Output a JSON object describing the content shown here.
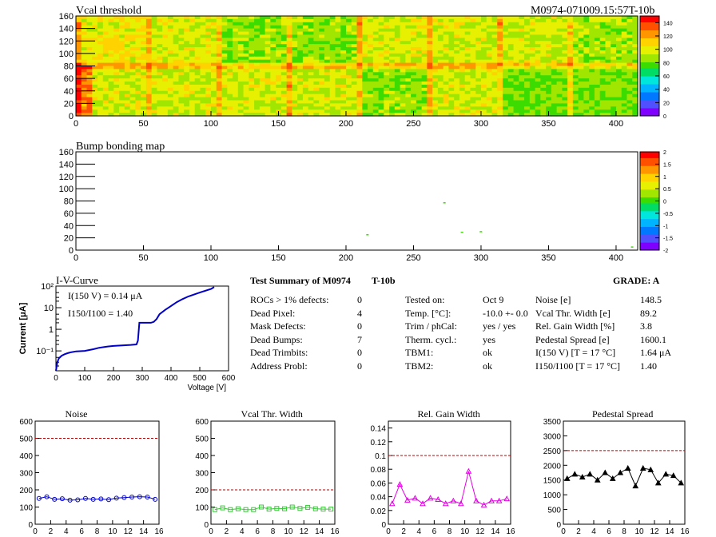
{
  "header": {
    "module_id": "M0974-071009.15:57T-10b"
  },
  "colors": {
    "axis": "#000000",
    "palette": [
      "#7f00ff",
      "#5050ff",
      "#0078ff",
      "#00b4ff",
      "#00e6dc",
      "#00dc64",
      "#3cdc00",
      "#a0e600",
      "#e6f000",
      "#ffd200",
      "#ff9600",
      "#ff5000",
      "#ff0000"
    ],
    "noise": "#0000c8",
    "vcal": "#3cc83c",
    "gain": "#e600e6",
    "ped": "#000000",
    "limit": "#b40000"
  },
  "summary": {
    "title": "Test Summary of M0974",
    "title2": "T-10b",
    "grade": "GRADE:  A",
    "left": [
      {
        "label": "ROCs > 1% defects:",
        "value": "0"
      },
      {
        "label": "Dead Pixel:",
        "value": "4"
      },
      {
        "label": "Mask Defects:",
        "value": "0"
      },
      {
        "label": "Dead Bumps:",
        "value": "7"
      },
      {
        "label": "Dead Trimbits:",
        "value": "0"
      },
      {
        "label": "Address Probl:",
        "value": "0"
      }
    ],
    "mid": [
      {
        "label": "Tested on:",
        "value": "Oct 9"
      },
      {
        "label": "Temp. [°C]:",
        "value": "-10.0 +- 0.0"
      },
      {
        "label": "Trim / phCal:",
        "value": "yes / yes"
      },
      {
        "label": "Therm. cycl.:",
        "value": "yes"
      },
      {
        "label": "TBM1:",
        "value": "ok"
      },
      {
        "label": "TBM2:",
        "value": "ok"
      }
    ],
    "right": [
      {
        "label": "Noise [e]",
        "value": "148.5"
      },
      {
        "label": "Vcal Thr. Width [e]",
        "value": "89.2"
      },
      {
        "label": "Rel. Gain Width [%]",
        "value": "3.8"
      },
      {
        "label": "Pedestal Spread [e]",
        "value": "1600.1"
      },
      {
        "label": "I(150 V) [T = 17 °C]",
        "value": "1.64 μA"
      },
      {
        "label": "I150/I100  [T = 17 °C]",
        "value": "1.40"
      }
    ]
  },
  "chart_data": [
    {
      "type": "heatmap",
      "title": "Vcal threshold",
      "xlim": [
        0,
        416
      ],
      "ylim": [
        0,
        160
      ],
      "xticks": [
        "0",
        "50",
        "100",
        "150",
        "200",
        "250",
        "300",
        "350",
        "400"
      ],
      "yticks": [
        "0",
        "20",
        "40",
        "60",
        "80",
        "100",
        "120",
        "140",
        "160"
      ],
      "zlim": [
        0,
        150
      ],
      "zticks": [
        "0",
        "20",
        "40",
        "60",
        "80",
        "100",
        "120",
        "140"
      ],
      "description_values": {
        "typical": 100
      }
    },
    {
      "type": "heatmap",
      "title": "Bump bonding map",
      "xlim": [
        0,
        416
      ],
      "ylim": [
        0,
        160
      ],
      "xticks": [
        "0",
        "50",
        "100",
        "150",
        "200",
        "250",
        "300",
        "350",
        "400"
      ],
      "yticks": [
        "0",
        "20",
        "40",
        "60",
        "80",
        "100",
        "120",
        "140",
        "160"
      ],
      "zlim": [
        -2,
        2
      ],
      "zticks": [
        "-2",
        "-1.5",
        "-1",
        "-0.5",
        "0",
        "0.5",
        "1",
        "1.5",
        "2"
      ],
      "points": [
        [
          272,
          78
        ],
        [
          285,
          30
        ],
        [
          299,
          31
        ],
        [
          215,
          26
        ],
        [
          411,
          6
        ]
      ]
    },
    {
      "type": "line",
      "title": "I-V-Curve",
      "xlabel": "Voltage [V]",
      "ylabel": "Current [μA]",
      "xlim": [
        0,
        600
      ],
      "ylim": [
        0.012,
        100
      ],
      "yscale": "log",
      "xticks": [
        "0",
        "100",
        "200",
        "300",
        "400",
        "500",
        "600"
      ],
      "yticks": [
        "10⁻¹",
        "1",
        "10",
        "10²"
      ],
      "annotation1": "I(150 V) = 0.14 μA",
      "annotation2": "I150/I100 =  1.40",
      "x": [
        0,
        5,
        10,
        20,
        30,
        40,
        50,
        70,
        100,
        130,
        150,
        180,
        200,
        230,
        260,
        280,
        285,
        290,
        300,
        330,
        340,
        350,
        360,
        380,
        400,
        420,
        440,
        460,
        500,
        540,
        550
      ],
      "y": [
        0.012,
        0.03,
        0.045,
        0.06,
        0.07,
        0.078,
        0.085,
        0.095,
        0.1,
        0.12,
        0.14,
        0.16,
        0.17,
        0.18,
        0.19,
        0.2,
        0.3,
        2.0,
        2.0,
        2.0,
        2.2,
        3,
        5,
        8,
        12,
        18,
        25,
        33,
        50,
        75,
        90
      ]
    },
    {
      "type": "line",
      "title": "Noise",
      "xlim": [
        0,
        16
      ],
      "ylim": [
        0,
        600
      ],
      "xticks": [
        "0",
        "2",
        "4",
        "6",
        "8",
        "10",
        "12",
        "14",
        "16"
      ],
      "yticks": [
        "0",
        "100",
        "200",
        "300",
        "400",
        "500",
        "600"
      ],
      "limit": 500,
      "x": [
        0.5,
        1.5,
        2.5,
        3.5,
        4.5,
        5.5,
        6.5,
        7.5,
        8.5,
        9.5,
        10.5,
        11.5,
        12.5,
        13.5,
        14.5,
        15.5
      ],
      "values": [
        150,
        160,
        145,
        148,
        140,
        142,
        150,
        145,
        147,
        143,
        152,
        155,
        158,
        160,
        158,
        145
      ]
    },
    {
      "type": "line",
      "title": "Vcal Thr. Width",
      "xlim": [
        0,
        16
      ],
      "ylim": [
        0,
        600
      ],
      "xticks": [
        "0",
        "2",
        "4",
        "6",
        "8",
        "10",
        "12",
        "14",
        "16"
      ],
      "yticks": [
        "0",
        "100",
        "200",
        "300",
        "400",
        "500",
        "600"
      ],
      "limit": 200,
      "x": [
        0.5,
        1.5,
        2.5,
        3.5,
        4.5,
        5.5,
        6.5,
        7.5,
        8.5,
        9.5,
        10.5,
        11.5,
        12.5,
        13.5,
        14.5,
        15.5
      ],
      "values": [
        85,
        95,
        85,
        90,
        85,
        85,
        100,
        88,
        92,
        90,
        100,
        92,
        98,
        90,
        88,
        88
      ]
    },
    {
      "type": "line",
      "title": "Rel. Gain Width",
      "xlim": [
        0,
        16
      ],
      "ylim": [
        0,
        0.15
      ],
      "xticks": [
        "0",
        "2",
        "4",
        "6",
        "8",
        "10",
        "12",
        "14",
        "16"
      ],
      "yticks": [
        "0",
        "0.02",
        "0.04",
        "0.06",
        "0.08",
        "0.1",
        "0.12",
        "0.14"
      ],
      "limit": 0.1,
      "x": [
        0.5,
        1.5,
        2.5,
        3.5,
        4.5,
        5.5,
        6.5,
        7.5,
        8.5,
        9.5,
        10.5,
        11.5,
        12.5,
        13.5,
        14.5,
        15.5
      ],
      "values": [
        0.03,
        0.058,
        0.035,
        0.038,
        0.03,
        0.038,
        0.036,
        0.03,
        0.034,
        0.03,
        0.077,
        0.034,
        0.028,
        0.034,
        0.034,
        0.037
      ]
    },
    {
      "type": "line",
      "title": "Pedestal Spread",
      "xlim": [
        0,
        16
      ],
      "ylim": [
        0,
        3500
      ],
      "xticks": [
        "0",
        "2",
        "4",
        "6",
        "8",
        "10",
        "12",
        "14",
        "16"
      ],
      "yticks": [
        "0",
        "500",
        "1000",
        "1500",
        "2000",
        "2500",
        "3000",
        "3500"
      ],
      "limit": 2500,
      "x": [
        0.5,
        1.5,
        2.5,
        3.5,
        4.5,
        5.5,
        6.5,
        7.5,
        8.5,
        9.5,
        10.5,
        11.5,
        12.5,
        13.5,
        14.5,
        15.5
      ],
      "values": [
        1550,
        1700,
        1600,
        1700,
        1500,
        1750,
        1550,
        1750,
        1900,
        1300,
        1900,
        1850,
        1400,
        1700,
        1650,
        1400
      ]
    }
  ]
}
